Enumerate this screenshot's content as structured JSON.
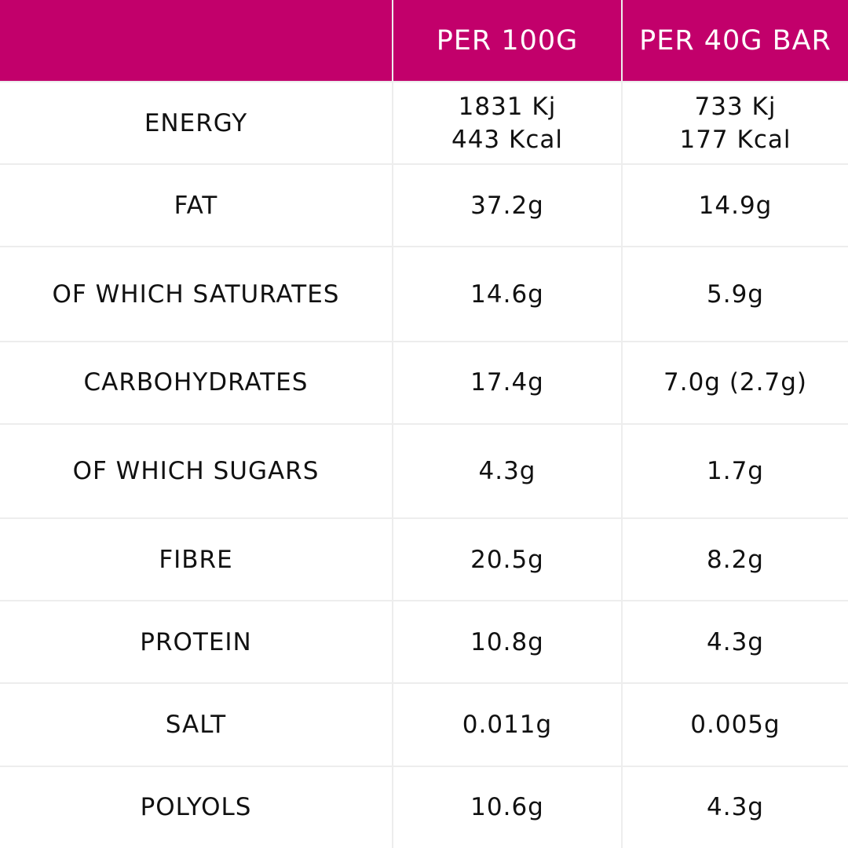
{
  "colors": {
    "header_bg": "#c2006b",
    "header_text": "#ffffff",
    "body_text": "#111111",
    "grid_lines": "#ededed"
  },
  "table": {
    "headers": [
      "",
      "PER 100G",
      "PER 40G BAR"
    ],
    "rows": [
      {
        "label": "ENERGY",
        "per100g": [
          "1831 Kj",
          "443 Kcal"
        ],
        "per40g": [
          "733 Kj",
          "177 Kcal"
        ]
      },
      {
        "label": "FAT",
        "per100g": "37.2g",
        "per40g": "14.9g"
      },
      {
        "label": "OF WHICH SATURATES",
        "per100g": "14.6g",
        "per40g": "5.9g"
      },
      {
        "label": "CARBOHYDRATES",
        "per100g": "17.4g",
        "per40g": "7.0g (2.7g)"
      },
      {
        "label": "OF WHICH SUGARS",
        "per100g": "4.3g",
        "per40g": "1.7g"
      },
      {
        "label": "FIBRE",
        "per100g": "20.5g",
        "per40g": "8.2g"
      },
      {
        "label": "PROTEIN",
        "per100g": "10.8g",
        "per40g": "4.3g"
      },
      {
        "label": "SALT",
        "per100g": "0.011g",
        "per40g": "0.005g"
      },
      {
        "label": "POLYOLS",
        "per100g": "10.6g",
        "per40g": "4.3g"
      }
    ]
  }
}
